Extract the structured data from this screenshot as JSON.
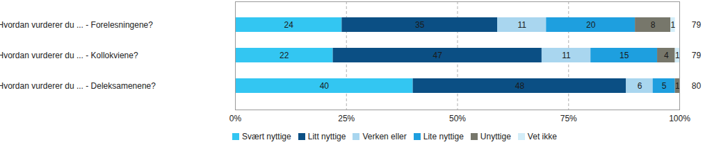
{
  "chart_data": {
    "type": "bar",
    "orientation": "horizontal",
    "stacked": true,
    "data_labels": true,
    "grid": true,
    "legend": "bottom",
    "categories": [
      "Hvordan vurderer du ... - Forelesningene?",
      "Hvordan vurderer du ... - Kollokviene?",
      "Hvordan vurderer du ... - Deleksamenene?"
    ],
    "series": [
      {
        "name": "Svært nyttige",
        "color": "#33c6f2",
        "values": [
          24,
          22,
          40
        ]
      },
      {
        "name": "Litt nyttige",
        "color": "#0b4f84",
        "values": [
          35,
          47,
          48
        ]
      },
      {
        "name": "Verken eller",
        "color": "#a9d6ef",
        "values": [
          11,
          11,
          6
        ]
      },
      {
        "name": "Lite nyttige",
        "color": "#1e9fdf",
        "values": [
          20,
          15,
          5
        ]
      },
      {
        "name": "Unyttige",
        "color": "#77776b",
        "values": [
          8,
          4,
          1
        ]
      },
      {
        "name": "Vet ikke",
        "color": "#d3edf8",
        "values": [
          1,
          1,
          null
        ]
      }
    ],
    "totals": [
      79,
      79,
      80
    ],
    "xlim": [
      0,
      100
    ],
    "xticks": [
      {
        "value": 0,
        "label": "0%"
      },
      {
        "value": 25,
        "label": "25%"
      },
      {
        "value": 50,
        "label": "50%"
      },
      {
        "value": 75,
        "label": "75%"
      },
      {
        "value": 100,
        "label": "100%"
      }
    ]
  }
}
